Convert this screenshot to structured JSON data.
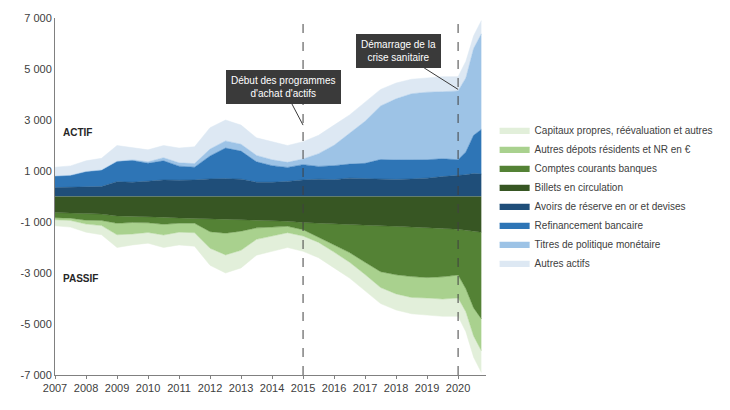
{
  "chart_data": {
    "type": "area",
    "stacked": true,
    "grid": false,
    "legend": "right",
    "x": [
      2007,
      2007.5,
      2008,
      2008.5,
      2009,
      2009.5,
      2010,
      2010.5,
      2011,
      2011.5,
      2012,
      2012.5,
      2013,
      2013.5,
      2014,
      2014.5,
      2015,
      2015.5,
      2016,
      2016.5,
      2017,
      2017.5,
      2018,
      2018.5,
      2019,
      2019.5,
      2020,
      2020.25,
      2020.5,
      2020.75
    ],
    "xlim": [
      2007,
      2020.9
    ],
    "xticks": [
      2007,
      2008,
      2009,
      2010,
      2011,
      2012,
      2013,
      2014,
      2015,
      2016,
      2017,
      2018,
      2019,
      2020
    ],
    "ylim": [
      -7000,
      7000
    ],
    "yticks": [
      {
        "value": 7000,
        "label": "7 000"
      },
      {
        "value": 5000,
        "label": "5 000"
      },
      {
        "value": 3000,
        "label": "3 000"
      },
      {
        "value": 1000,
        "label": "1 000"
      },
      {
        "value": -1000,
        "label": "-1 000"
      },
      {
        "value": -3000,
        "label": "-3 000"
      },
      {
        "value": -5000,
        "label": "-5 000"
      },
      {
        "value": -7000,
        "label": "-7 000"
      }
    ],
    "annotations": [
      {
        "text": "Début des programmes\nd'achat d'actifs",
        "x": 2015
      },
      {
        "text": "Démarrage de la\ncrise sanitaire",
        "x": 2020
      },
      {
        "text": "ACTIF"
      },
      {
        "text": "PASSIF"
      }
    ],
    "series": [
      {
        "name": "Autres actifs",
        "color": "#dde8f3",
        "values": [
          350,
          370,
          420,
          460,
          620,
          460,
          470,
          480,
          580,
          660,
          840,
          820,
          750,
          690,
          710,
          660,
          680,
          720,
          790,
          730,
          750,
          650,
          620,
          570,
          560,
          590,
          560,
          650,
          500,
          520
        ]
      },
      {
        "name": "Titres de politique monétaire",
        "color": "#9dc3e6",
        "values": [
          0,
          0,
          0,
          0,
          0,
          30,
          60,
          120,
          130,
          140,
          270,
          280,
          270,
          250,
          230,
          200,
          220,
          500,
          800,
          1200,
          1650,
          2100,
          2400,
          2600,
          2650,
          2630,
          2700,
          2900,
          3400,
          3750
        ]
      },
      {
        "name": "Refinancement bancaire",
        "color": "#2e75b6",
        "values": [
          450,
          460,
          600,
          650,
          800,
          850,
          700,
          750,
          550,
          500,
          900,
          1200,
          1100,
          800,
          650,
          550,
          600,
          500,
          550,
          550,
          600,
          770,
          760,
          740,
          720,
          700,
          620,
          900,
          1500,
          1750
        ]
      },
      {
        "name": "Avoirs de réserve en or et devises",
        "color": "#1f4e79",
        "values": [
          350,
          370,
          380,
          390,
          580,
          560,
          600,
          650,
          640,
          650,
          690,
          700,
          680,
          560,
          560,
          590,
          650,
          680,
          660,
          720,
          700,
          680,
          670,
          690,
          720,
          780,
          820,
          850,
          900,
          880
        ]
      },
      {
        "name": "Billets en circulation",
        "color": "#375623",
        "values": [
          -630,
          -650,
          -680,
          -690,
          -760,
          -770,
          -800,
          -810,
          -840,
          -850,
          -880,
          -890,
          -910,
          -930,
          -950,
          -970,
          -1020,
          -1050,
          -1080,
          -1100,
          -1130,
          -1150,
          -1170,
          -1190,
          -1230,
          -1250,
          -1280,
          -1320,
          -1370,
          -1400
        ]
      },
      {
        "name": "Comptes courants banques",
        "color": "#548235",
        "values": [
          -200,
          -200,
          -250,
          -250,
          -290,
          -250,
          -230,
          -280,
          -210,
          -200,
          -500,
          -550,
          -450,
          -300,
          -250,
          -200,
          -280,
          -550,
          -800,
          -1100,
          -1450,
          -1800,
          -1900,
          -1950,
          -1950,
          -1900,
          -1800,
          -2300,
          -3000,
          -3400
        ]
      },
      {
        "name": "Autres dépots résidents et NR en €",
        "color": "#a9d18e",
        "values": [
          -80,
          -90,
          -150,
          -200,
          -450,
          -450,
          -380,
          -420,
          -350,
          -370,
          -650,
          -850,
          -750,
          -450,
          -350,
          -250,
          -250,
          -200,
          -300,
          -380,
          -480,
          -620,
          -750,
          -820,
          -800,
          -870,
          -900,
          -900,
          -1100,
          -1250
        ]
      },
      {
        "name": "Capitaux propres, réévaluation et autres",
        "color": "#e2efda",
        "values": [
          -240,
          -260,
          -320,
          -360,
          -500,
          -430,
          -420,
          -490,
          -500,
          -530,
          -670,
          -710,
          -690,
          -620,
          -600,
          -580,
          -600,
          -600,
          -620,
          -620,
          -640,
          -630,
          -630,
          -640,
          -670,
          -680,
          -720,
          -780,
          -830,
          -850
        ]
      }
    ]
  }
}
